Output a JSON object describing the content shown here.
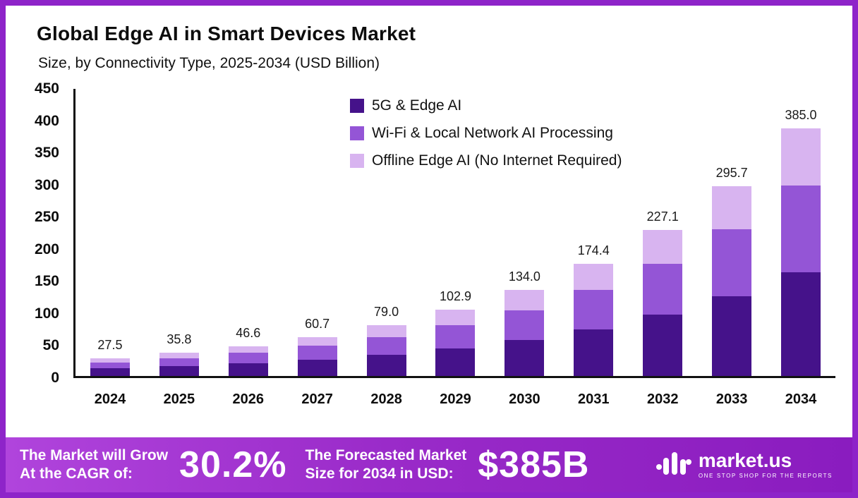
{
  "title": "Global Edge AI in Smart Devices Market",
  "subtitle": "Size, by Connectivity Type, 2025-2034 (USD Billion)",
  "chart_data": {
    "type": "bar",
    "stacked": true,
    "title": "Global Edge AI in Smart Devices Market Size, by Connectivity Type, 2025-2034 (USD Billion)",
    "xlabel": "",
    "ylabel": "USD Billion",
    "ylim": [
      0,
      450
    ],
    "ytick_step": 50,
    "grid": false,
    "legend_position": "top-center",
    "categories": [
      "2024",
      "2025",
      "2026",
      "2027",
      "2028",
      "2029",
      "2030",
      "2031",
      "2032",
      "2033",
      "2034"
    ],
    "totals": [
      27.5,
      35.8,
      46.6,
      60.7,
      79.0,
      102.9,
      134.0,
      174.4,
      227.1,
      295.7,
      385.0
    ],
    "series": [
      {
        "name": "5G & Edge AI",
        "color": "#45128A",
        "values": [
          11.6,
          15.0,
          19.6,
          25.5,
          33.0,
          43.0,
          56.0,
          73.0,
          95.0,
          124.0,
          161.0
        ]
      },
      {
        "name": "Wi-Fi & Local Network AI Processing",
        "color": "#9455D6",
        "values": [
          9.6,
          12.5,
          16.3,
          21.2,
          27.5,
          36.0,
          46.5,
          61.0,
          80.0,
          104.0,
          135.0
        ]
      },
      {
        "name": "Offline Edge AI (No Internet Required)",
        "color": "#D8B4F0",
        "values": [
          6.3,
          8.3,
          10.7,
          14.0,
          18.5,
          23.9,
          31.5,
          40.4,
          52.1,
          67.7,
          89.0
        ]
      }
    ]
  },
  "footer": {
    "cagr_label_1": "The Market will Grow",
    "cagr_label_2": "At the CAGR of:",
    "cagr_value": "30.2%",
    "forecast_label_1": "The Forecasted Market",
    "forecast_label_2": "Size for 2034 in USD:",
    "forecast_value": "$385B",
    "brand": "market.us",
    "brand_tagline": "ONE STOP SHOP FOR THE REPORTS"
  },
  "colors": {
    "frame": "#8E24C9",
    "footer_gradient_left": "#B044DC",
    "footer_gradient_right": "#8A1CBF",
    "axis": "#111111"
  }
}
